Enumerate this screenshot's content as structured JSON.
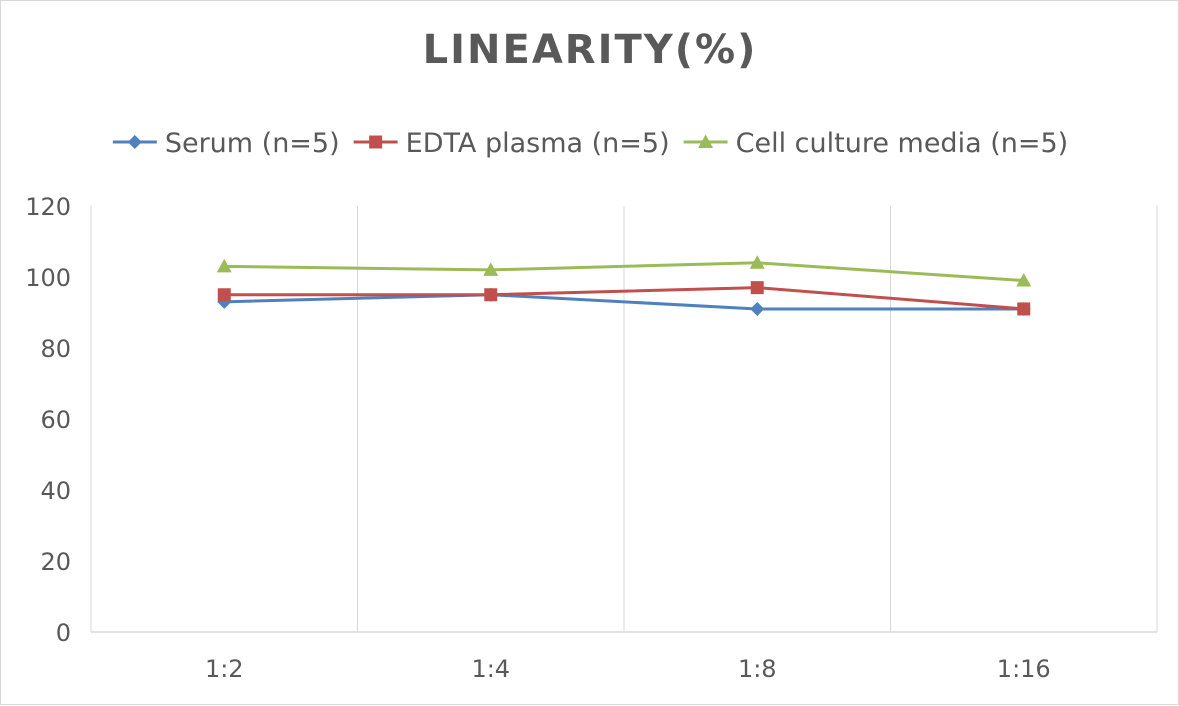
{
  "chart_data": {
    "type": "line",
    "title": "LINEARITY(%)",
    "xlabel": "",
    "ylabel": "",
    "categories": [
      "1:2",
      "1:4",
      "1:8",
      "1:16"
    ],
    "ylim": [
      0,
      120
    ],
    "yticks": [
      0,
      20,
      40,
      60,
      80,
      100,
      120
    ],
    "grid": "vertical",
    "legend_position": "top",
    "series": [
      {
        "name": "Serum (n=5)",
        "values": [
          93,
          95,
          91,
          91
        ],
        "color": "#4f81bd",
        "marker": "diamond"
      },
      {
        "name": "EDTA plasma (n=5)",
        "values": [
          95,
          95,
          97,
          91
        ],
        "color": "#c0504d",
        "marker": "square"
      },
      {
        "name": "Cell culture media (n=5)",
        "values": [
          103,
          102,
          104,
          99
        ],
        "color": "#9bbb59",
        "marker": "triangle"
      }
    ]
  }
}
